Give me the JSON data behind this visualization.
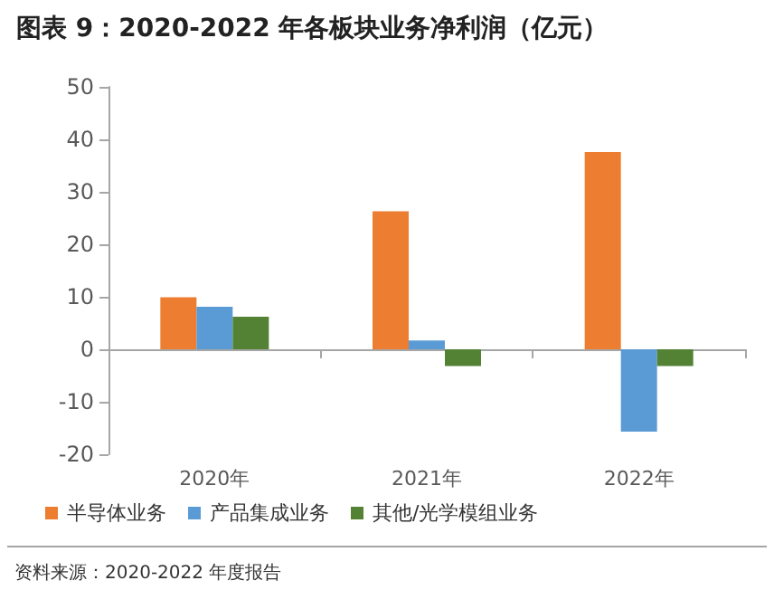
{
  "chart_data": {
    "type": "bar",
    "title": "图表 9：2020-2022 年各板块业务净利润（亿元）",
    "categories": [
      "2020年",
      "2021年",
      "2022年"
    ],
    "series": [
      {
        "name": "半导体业务",
        "color": "#ed7d31",
        "values": [
          9.9,
          26.3,
          37.6
        ]
      },
      {
        "name": "产品集成业务",
        "color": "#5b9bd5",
        "values": [
          8.1,
          1.7,
          -15.7
        ]
      },
      {
        "name": "其他/光学模组业务",
        "color": "#548235",
        "values": [
          6.2,
          -3.2,
          -3.2
        ]
      }
    ],
    "ylim": [
      -20,
      50
    ],
    "yticks": [
      -20,
      -10,
      0,
      10,
      20,
      30,
      40,
      50
    ],
    "legend": "bottom",
    "annotations": [
      "资料来源：2020-2022 年度报告"
    ]
  }
}
